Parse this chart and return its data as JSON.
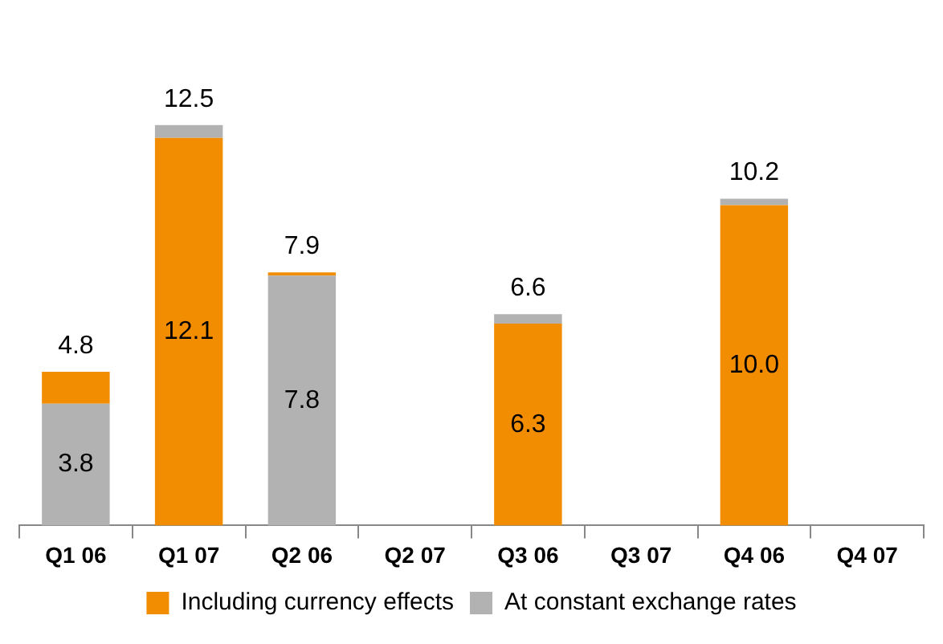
{
  "chart_data": {
    "type": "bar",
    "stacked": true,
    "categories": [
      "Q1 06",
      "Q1 07",
      "Q2 06",
      "Q2 07",
      "Q3 06",
      "Q3 07",
      "Q4 06",
      "Q4 07"
    ],
    "series": [
      {
        "name": "Including currency effects",
        "color": "#f28c00",
        "values": [
          null,
          12.1,
          null,
          null,
          6.3,
          null,
          10.0,
          null
        ],
        "value_labels": [
          null,
          "12.1",
          null,
          null,
          "6.3",
          null,
          "10.0",
          null
        ]
      },
      {
        "name": "At constant exchange rates",
        "color": "#b2b2b2",
        "values": [
          3.8,
          null,
          7.8,
          null,
          null,
          null,
          null,
          null
        ],
        "value_labels": [
          "3.8",
          null,
          "7.8",
          null,
          null,
          null,
          null,
          null
        ]
      },
      {
        "color": "#f28c00",
        "values": [
          1.0,
          null,
          0.1,
          null,
          null,
          null,
          null,
          null
        ]
      },
      {
        "color": "#b2b2b2",
        "values": [
          null,
          0.4,
          null,
          null,
          0.3,
          null,
          0.2,
          null
        ]
      }
    ],
    "totals": [
      "4.8",
      "12.5",
      "7.9",
      null,
      "6.6",
      null,
      "10.2",
      null
    ],
    "legend": "bottom",
    "grid": false
  }
}
